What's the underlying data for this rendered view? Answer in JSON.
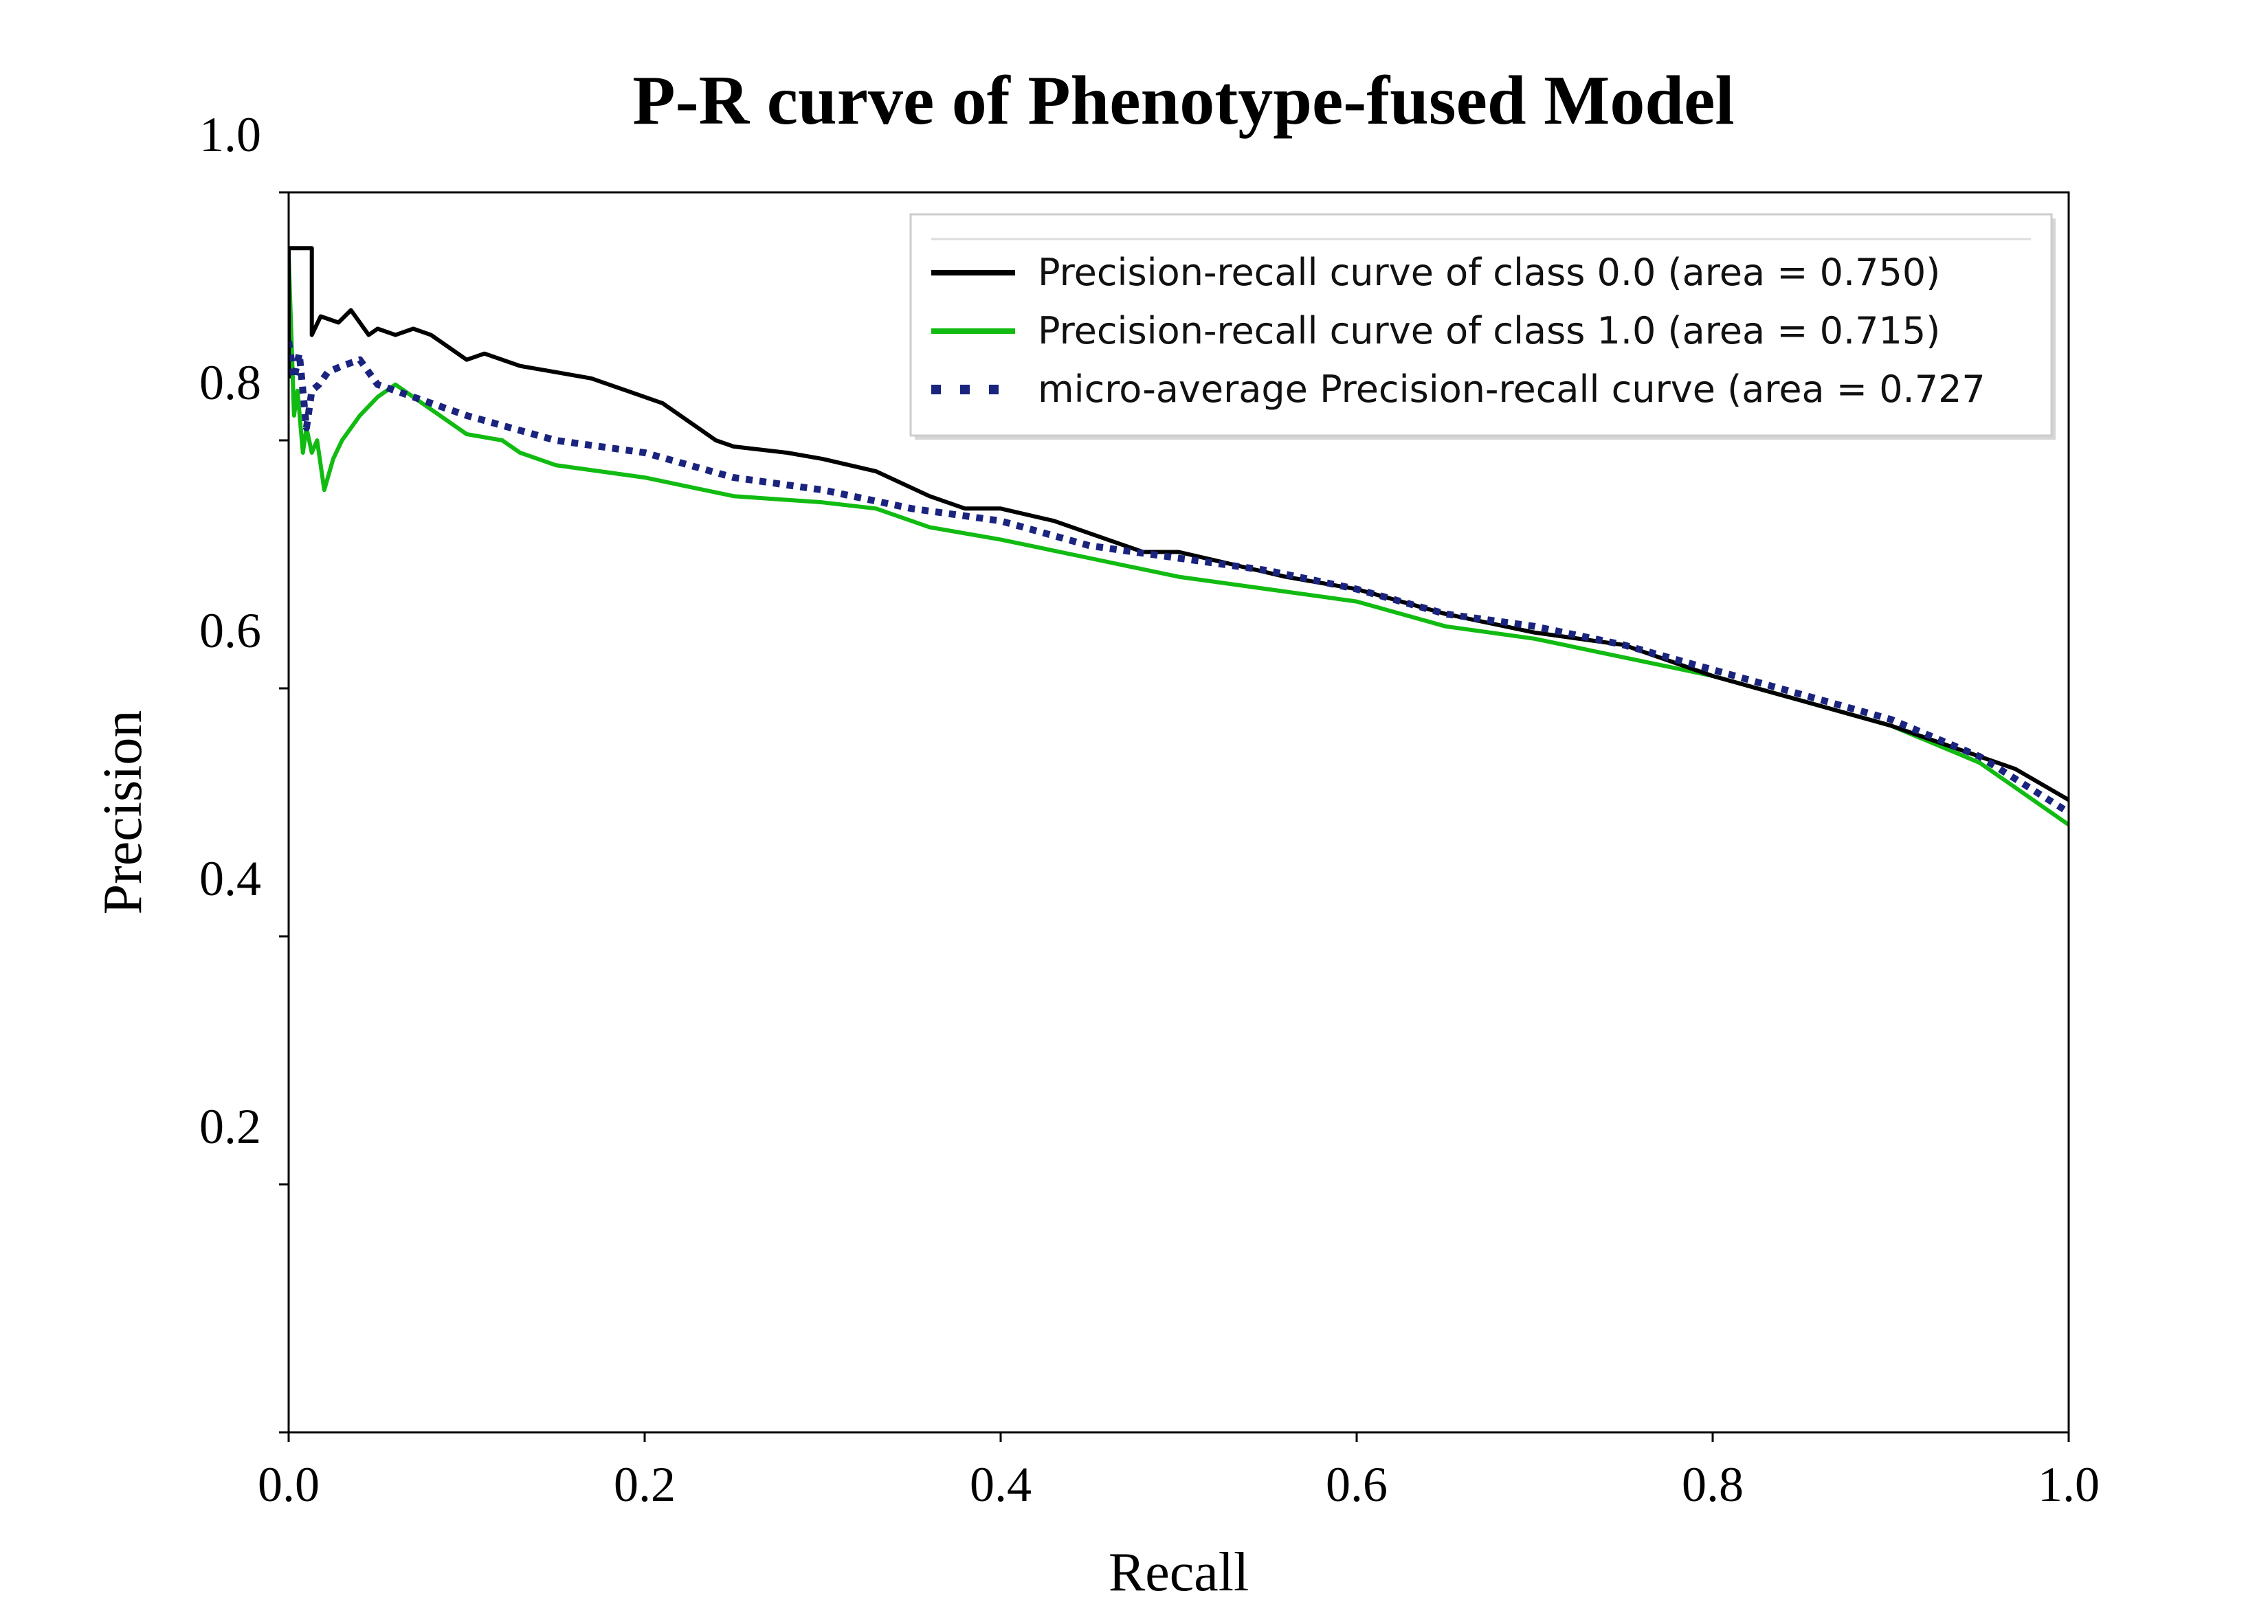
{
  "chart_data": {
    "type": "line",
    "title": "P-R curve of Phenotype-fused Model",
    "xlabel": "Recall",
    "ylabel": "Precision",
    "xlim": [
      0.0,
      1.0
    ],
    "ylim": [
      0.0,
      1.0
    ],
    "x_ticks": [
      0.0,
      0.2,
      0.4,
      0.6,
      0.8,
      1.0
    ],
    "x_tick_labels": [
      "0.0",
      "0.2",
      "0.4",
      "0.6",
      "0.8",
      "1.0"
    ],
    "y_ticks": [
      0.2,
      0.4,
      0.6,
      0.8,
      1.0
    ],
    "y_tick_labels": [
      "0.2",
      "0.4",
      "0.6",
      "0.8",
      "1.0"
    ],
    "grid": false,
    "legend_position": "top-right",
    "series": [
      {
        "name": "Precision-recall curve of class 0.0 (area = 0.750)",
        "color": "#000000",
        "style": "solid",
        "x": [
          0.0,
          0.0,
          0.013,
          0.013,
          0.018,
          0.028,
          0.035,
          0.045,
          0.05,
          0.06,
          0.07,
          0.08,
          0.09,
          0.1,
          0.11,
          0.12,
          0.13,
          0.15,
          0.17,
          0.19,
          0.21,
          0.23,
          0.24,
          0.25,
          0.28,
          0.3,
          0.33,
          0.36,
          0.38,
          0.4,
          0.43,
          0.46,
          0.48,
          0.5,
          0.53,
          0.56,
          0.6,
          0.65,
          0.7,
          0.75,
          0.8,
          0.85,
          0.9,
          0.94,
          0.97,
          1.0
        ],
        "y": [
          0.85,
          0.955,
          0.955,
          0.885,
          0.9,
          0.895,
          0.905,
          0.885,
          0.89,
          0.885,
          0.89,
          0.885,
          0.875,
          0.865,
          0.87,
          0.865,
          0.86,
          0.855,
          0.85,
          0.84,
          0.83,
          0.81,
          0.8,
          0.795,
          0.79,
          0.785,
          0.775,
          0.755,
          0.745,
          0.745,
          0.735,
          0.72,
          0.71,
          0.71,
          0.7,
          0.69,
          0.68,
          0.66,
          0.645,
          0.635,
          0.61,
          0.59,
          0.57,
          0.55,
          0.535,
          0.51
        ]
      },
      {
        "name": "Precision-recall curve of class 1.0 (area = 0.715)",
        "color": "#11bb11",
        "style": "solid",
        "x": [
          0.0,
          0.003,
          0.005,
          0.008,
          0.01,
          0.013,
          0.016,
          0.02,
          0.025,
          0.03,
          0.04,
          0.05,
          0.06,
          0.08,
          0.1,
          0.12,
          0.13,
          0.15,
          0.2,
          0.25,
          0.3,
          0.33,
          0.36,
          0.4,
          0.45,
          0.5,
          0.55,
          0.6,
          0.65,
          0.7,
          0.75,
          0.8,
          0.85,
          0.9,
          0.95,
          1.0
        ],
        "y": [
          0.95,
          0.82,
          0.84,
          0.79,
          0.81,
          0.79,
          0.8,
          0.76,
          0.785,
          0.8,
          0.82,
          0.835,
          0.845,
          0.825,
          0.805,
          0.8,
          0.79,
          0.78,
          0.77,
          0.755,
          0.75,
          0.745,
          0.73,
          0.72,
          0.705,
          0.69,
          0.68,
          0.67,
          0.65,
          0.64,
          0.625,
          0.61,
          0.59,
          0.57,
          0.54,
          0.49
        ]
      },
      {
        "name": "micro-average Precision-recall curve (area = 0.727",
        "color": "#1a237e",
        "style": "dotted",
        "x": [
          0.0,
          0.003,
          0.006,
          0.01,
          0.013,
          0.017,
          0.022,
          0.03,
          0.04,
          0.05,
          0.06,
          0.08,
          0.1,
          0.15,
          0.2,
          0.25,
          0.3,
          0.35,
          0.4,
          0.45,
          0.5,
          0.55,
          0.6,
          0.65,
          0.7,
          0.75,
          0.8,
          0.85,
          0.9,
          0.95,
          1.0
        ],
        "y": [
          0.88,
          0.85,
          0.87,
          0.81,
          0.84,
          0.845,
          0.855,
          0.86,
          0.865,
          0.845,
          0.84,
          0.83,
          0.82,
          0.8,
          0.79,
          0.77,
          0.76,
          0.745,
          0.735,
          0.715,
          0.705,
          0.695,
          0.68,
          0.66,
          0.65,
          0.635,
          0.615,
          0.595,
          0.575,
          0.545,
          0.5
        ]
      }
    ]
  }
}
